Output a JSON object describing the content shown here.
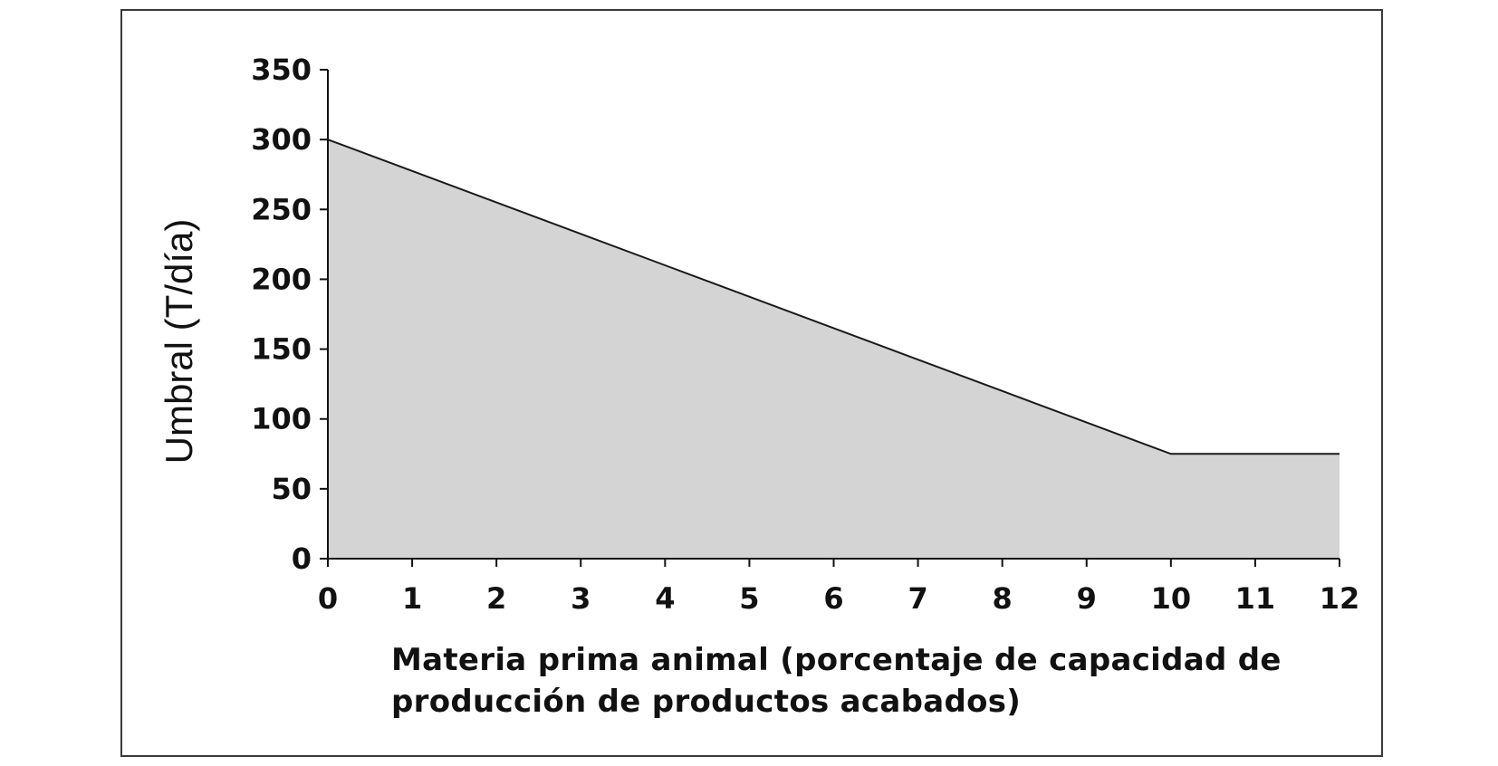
{
  "chart_data": {
    "type": "area",
    "x": [
      0,
      1,
      2,
      3,
      4,
      5,
      6,
      7,
      8,
      9,
      10,
      11,
      12
    ],
    "y": [
      300,
      277.5,
      255,
      232.5,
      210,
      187.5,
      165,
      142.5,
      120,
      97.5,
      75,
      75,
      75
    ],
    "xlim": [
      0,
      12
    ],
    "ylim": [
      0,
      350
    ],
    "x_ticks": [
      "0",
      "1",
      "2",
      "3",
      "4",
      "5",
      "6",
      "7",
      "8",
      "9",
      "10",
      "11",
      "12"
    ],
    "y_ticks": [
      "0",
      "50",
      "100",
      "150",
      "200",
      "250",
      "300",
      "350"
    ],
    "ylabel": "Umbral (T/día)",
    "xlabel_lines": [
      "Materia prima animal (porcentaje de capacidad de",
      "producción de productos acabados)"
    ],
    "grid": false,
    "fill_color": "#d4d4d4",
    "line_color": "#1a1a1a"
  }
}
